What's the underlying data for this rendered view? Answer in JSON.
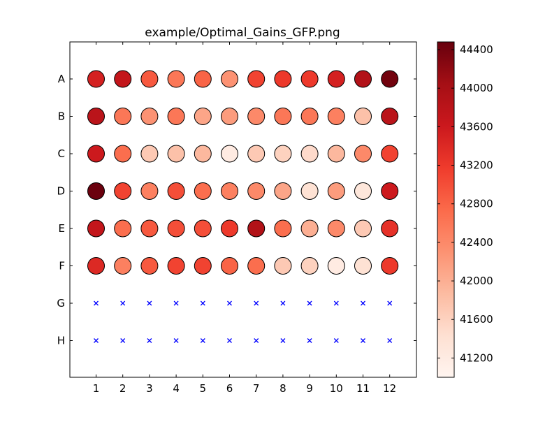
{
  "chart_data": {
    "type": "scatter",
    "title": "example/Optimal_Gains_GFP.png",
    "x_ticks": [
      "1",
      "2",
      "3",
      "4",
      "5",
      "6",
      "7",
      "8",
      "9",
      "10",
      "11",
      "12"
    ],
    "y_ticks": [
      "A",
      "B",
      "C",
      "D",
      "E",
      "F",
      "G",
      "H"
    ],
    "colormap": "Reds",
    "color_range": [
      41000,
      44480
    ],
    "colorbar_ticks": [
      "41200",
      "41600",
      "42000",
      "42400",
      "42800",
      "43200",
      "43600",
      "44000",
      "44400"
    ],
    "missing_marker": "x",
    "missing_color": "#0000ff",
    "rows": [
      {
        "row": "A",
        "values": [
          43500,
          43700,
          42900,
          42600,
          42800,
          42300,
          43100,
          43200,
          43200,
          43500,
          43900,
          44400
        ]
      },
      {
        "row": "B",
        "values": [
          43800,
          42600,
          42300,
          42600,
          42100,
          42200,
          42400,
          42600,
          42600,
          42500,
          41800,
          43800
        ]
      },
      {
        "row": "C",
        "values": [
          43600,
          42700,
          41700,
          41800,
          41900,
          41200,
          41700,
          41600,
          41500,
          41900,
          42400,
          43100
        ]
      },
      {
        "row": "D",
        "values": [
          44450,
          43100,
          42500,
          43000,
          42700,
          42500,
          42400,
          42100,
          41400,
          42200,
          41300,
          43600
        ]
      },
      {
        "row": "E",
        "values": [
          43700,
          42700,
          42900,
          43000,
          43000,
          43200,
          43900,
          42700,
          42000,
          42400,
          41700,
          43300
        ]
      },
      {
        "row": "F",
        "values": [
          43400,
          42500,
          42900,
          43100,
          43100,
          42800,
          42700,
          41700,
          41600,
          41200,
          41400,
          43200
        ]
      },
      {
        "row": "G",
        "values": [
          null,
          null,
          null,
          null,
          null,
          null,
          null,
          null,
          null,
          null,
          null,
          null
        ]
      },
      {
        "row": "H",
        "values": [
          null,
          null,
          null,
          null,
          null,
          null,
          null,
          null,
          null,
          null,
          null,
          null
        ]
      }
    ]
  }
}
